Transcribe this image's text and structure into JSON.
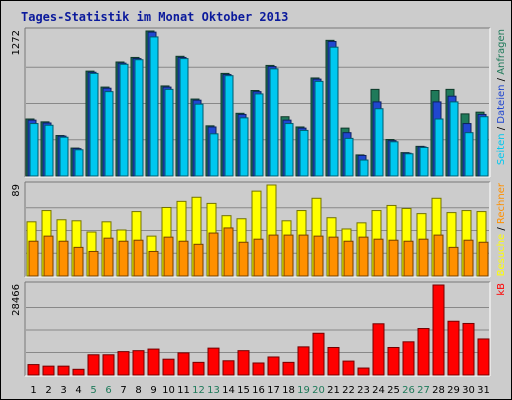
{
  "title": "Tages-Statistik im Monat Oktober 2013",
  "colors": {
    "background": "#cccccc",
    "grid": "#888888",
    "hits": "#1f7a5a",
    "files": "#2047d0",
    "pages": "#00c8f0",
    "visits": "#ffff00",
    "sites": "#ff9000",
    "kbytes": "#ff0000",
    "weekday_label": "#000000",
    "weekend_label": "#1f7a5a",
    "title": "#0b1a9c"
  },
  "chart_data": [
    {
      "type": "bar",
      "panel": "requests",
      "y_max_label": "1272",
      "ylim": [
        0,
        1272
      ],
      "grid": true,
      "legend": [
        {
          "key": "hits",
          "label": "Anfragen"
        },
        {
          "key": "files",
          "label": "Dateien"
        },
        {
          "key": "pages",
          "label": "Seiten"
        }
      ],
      "legend_separator": "/",
      "categories": [
        "1",
        "2",
        "3",
        "4",
        "5",
        "6",
        "7",
        "8",
        "9",
        "10",
        "11",
        "12",
        "13",
        "14",
        "15",
        "16",
        "17",
        "18",
        "19",
        "20",
        "21",
        "22",
        "23",
        "24",
        "25",
        "26",
        "27",
        "28",
        "29",
        "30",
        "31"
      ],
      "series": [
        {
          "name": "Anfragen",
          "key": "hits",
          "values": [
            500,
            475,
            355,
            245,
            920,
            780,
            1000,
            1040,
            1272,
            790,
            1050,
            675,
            440,
            900,
            550,
            750,
            970,
            520,
            430,
            860,
            1190,
            420,
            185,
            760,
            320,
            205,
            260,
            750,
            760,
            545,
            560
          ]
        },
        {
          "name": "Dateien",
          "key": "files",
          "values": [
            490,
            465,
            350,
            240,
            910,
            770,
            990,
            1030,
            1262,
            780,
            1040,
            665,
            430,
            890,
            540,
            740,
            960,
            490,
            420,
            850,
            1180,
            380,
            180,
            650,
            310,
            200,
            255,
            650,
            700,
            460,
            540
          ]
        },
        {
          "name": "Seiten",
          "key": "pages",
          "values": [
            460,
            445,
            340,
            230,
            900,
            740,
            980,
            1020,
            1220,
            760,
            1030,
            630,
            370,
            880,
            510,
            720,
            940,
            460,
            400,
            830,
            1130,
            330,
            140,
            590,
            300,
            195,
            250,
            500,
            650,
            380,
            520
          ]
        }
      ]
    },
    {
      "type": "bar",
      "panel": "visits",
      "y_max_label": "89",
      "ylim": [
        0,
        89
      ],
      "grid": true,
      "legend": [
        {
          "key": "sites",
          "label": "Rechner"
        },
        {
          "key": "visits",
          "label": "Besuche"
        }
      ],
      "legend_separator": "/",
      "categories": [
        "1",
        "2",
        "3",
        "4",
        "5",
        "6",
        "7",
        "8",
        "9",
        "10",
        "11",
        "12",
        "13",
        "14",
        "15",
        "16",
        "17",
        "18",
        "19",
        "20",
        "21",
        "22",
        "23",
        "24",
        "25",
        "26",
        "27",
        "28",
        "29",
        "30",
        "31"
      ],
      "series": [
        {
          "name": "Besuche",
          "key": "visits",
          "values": [
            53,
            64,
            55,
            54,
            43,
            53,
            45,
            63,
            39,
            67,
            73,
            77,
            71,
            59,
            56,
            83,
            89,
            54,
            64,
            76,
            57,
            46,
            52,
            64,
            69,
            66,
            61,
            76,
            62,
            64,
            63
          ]
        },
        {
          "name": "Rechner",
          "key": "sites",
          "values": [
            34,
            39,
            34,
            28,
            24,
            37,
            34,
            35,
            24,
            38,
            34,
            31,
            42,
            47,
            33,
            36,
            40,
            40,
            40,
            39,
            38,
            34,
            38,
            36,
            35,
            34,
            36,
            40,
            28,
            35,
            33
          ]
        }
      ]
    },
    {
      "type": "bar",
      "panel": "kbytes",
      "y_max_label": "28466",
      "ylim": [
        0,
        28466
      ],
      "grid": true,
      "legend": [
        {
          "key": "kbytes",
          "label": "kB"
        }
      ],
      "categories": [
        "1",
        "2",
        "3",
        "4",
        "5",
        "6",
        "7",
        "8",
        "9",
        "10",
        "11",
        "12",
        "13",
        "14",
        "15",
        "16",
        "17",
        "18",
        "19",
        "20",
        "21",
        "22",
        "23",
        "24",
        "25",
        "26",
        "27",
        "28",
        "29",
        "30",
        "31"
      ],
      "series": [
        {
          "name": "kB",
          "key": "kbytes",
          "values": [
            3300,
            2800,
            2800,
            1800,
            6400,
            6400,
            7400,
            7700,
            8200,
            5000,
            7000,
            4000,
            8500,
            4500,
            7700,
            3800,
            5700,
            4000,
            8900,
            13200,
            8700,
            4400,
            2200,
            16200,
            8700,
            10500,
            14700,
            28466,
            17000,
            16300,
            11400
          ]
        }
      ]
    }
  ]
}
